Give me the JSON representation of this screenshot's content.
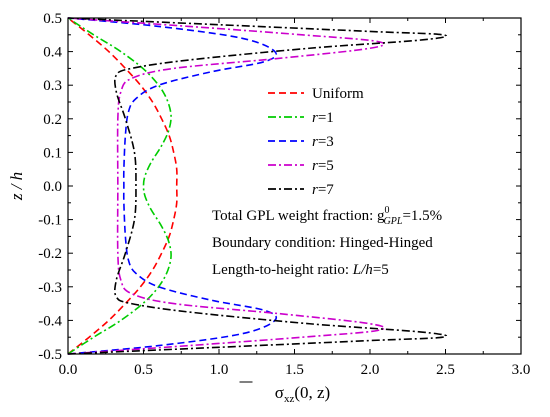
{
  "chart_data": {
    "type": "line",
    "xlabel_prefix": "σ",
    "xlabel_sub": "xz",
    "xlabel_suffix": "(0, z)",
    "ylabel": "z / h",
    "xlim": [
      0.0,
      3.0
    ],
    "ylim": [
      -0.5,
      0.5
    ],
    "xticks": [
      "0.0",
      "0.5",
      "1.0",
      "1.5",
      "2.0",
      "2.5",
      "3.0"
    ],
    "yticks": [
      "-0.5",
      "-0.4",
      "-0.3",
      "-0.2",
      "-0.1",
      "0.0",
      "0.1",
      "0.2",
      "0.3",
      "0.4",
      "0.5"
    ],
    "legend_position": "right",
    "series": [
      {
        "name": "Uniform",
        "color": "#ff0000",
        "dash": "dashed",
        "points": [
          [
            0.0,
            -0.5
          ],
          [
            0.14,
            -0.45
          ],
          [
            0.27,
            -0.4
          ],
          [
            0.38,
            -0.35
          ],
          [
            0.48,
            -0.3
          ],
          [
            0.56,
            -0.25
          ],
          [
            0.62,
            -0.2
          ],
          [
            0.67,
            -0.15
          ],
          [
            0.7,
            -0.1
          ],
          [
            0.72,
            -0.05
          ],
          [
            0.72,
            0.0
          ],
          [
            0.72,
            0.05
          ],
          [
            0.7,
            0.1
          ],
          [
            0.67,
            0.15
          ],
          [
            0.62,
            0.2
          ],
          [
            0.56,
            0.25
          ],
          [
            0.48,
            0.3
          ],
          [
            0.38,
            0.35
          ],
          [
            0.27,
            0.4
          ],
          [
            0.14,
            0.45
          ],
          [
            0.0,
            0.5
          ]
        ]
      },
      {
        "name": "r=1",
        "color": "#00cc00",
        "dash": "dashdot",
        "points": [
          [
            0.0,
            -0.5
          ],
          [
            0.17,
            -0.45
          ],
          [
            0.35,
            -0.4
          ],
          [
            0.52,
            -0.34
          ],
          [
            0.63,
            -0.28
          ],
          [
            0.68,
            -0.22
          ],
          [
            0.67,
            -0.17
          ],
          [
            0.62,
            -0.12
          ],
          [
            0.55,
            -0.07
          ],
          [
            0.51,
            -0.03
          ],
          [
            0.5,
            0.0
          ],
          [
            0.51,
            0.03
          ],
          [
            0.55,
            0.07
          ],
          [
            0.62,
            0.12
          ],
          [
            0.67,
            0.17
          ],
          [
            0.68,
            0.22
          ],
          [
            0.63,
            0.28
          ],
          [
            0.52,
            0.34
          ],
          [
            0.35,
            0.4
          ],
          [
            0.17,
            0.45
          ],
          [
            0.0,
            0.5
          ]
        ]
      },
      {
        "name": "r=3",
        "color": "#0000ff",
        "dash": "dashed",
        "points": [
          [
            0.0,
            -0.5
          ],
          [
            0.6,
            -0.475
          ],
          [
            1.15,
            -0.44
          ],
          [
            1.37,
            -0.4
          ],
          [
            1.3,
            -0.37
          ],
          [
            0.95,
            -0.34
          ],
          [
            0.6,
            -0.3
          ],
          [
            0.45,
            -0.26
          ],
          [
            0.4,
            -0.22
          ],
          [
            0.38,
            -0.15
          ],
          [
            0.37,
            -0.05
          ],
          [
            0.37,
            0.0
          ],
          [
            0.37,
            0.05
          ],
          [
            0.38,
            0.15
          ],
          [
            0.4,
            0.22
          ],
          [
            0.45,
            0.26
          ],
          [
            0.6,
            0.3
          ],
          [
            0.95,
            0.34
          ],
          [
            1.3,
            0.37
          ],
          [
            1.37,
            0.4
          ],
          [
            1.15,
            0.44
          ],
          [
            0.6,
            0.475
          ],
          [
            0.0,
            0.5
          ]
        ]
      },
      {
        "name": "r=5",
        "color": "#cc00cc",
        "dash": "dashdot",
        "points": [
          [
            0.0,
            -0.5
          ],
          [
            0.8,
            -0.475
          ],
          [
            1.55,
            -0.45
          ],
          [
            2.05,
            -0.43
          ],
          [
            2.0,
            -0.41
          ],
          [
            1.4,
            -0.38
          ],
          [
            0.7,
            -0.35
          ],
          [
            0.42,
            -0.32
          ],
          [
            0.35,
            -0.28
          ],
          [
            0.33,
            -0.2
          ],
          [
            0.33,
            0.0
          ],
          [
            0.33,
            0.2
          ],
          [
            0.35,
            0.28
          ],
          [
            0.42,
            0.32
          ],
          [
            0.7,
            0.35
          ],
          [
            1.4,
            0.38
          ],
          [
            2.0,
            0.41
          ],
          [
            2.05,
            0.43
          ],
          [
            1.55,
            0.45
          ],
          [
            0.8,
            0.475
          ],
          [
            0.0,
            0.5
          ]
        ]
      },
      {
        "name": "r=7",
        "color": "#000000",
        "dash": "dashdot",
        "points": [
          [
            0.0,
            -0.5
          ],
          [
            1.0,
            -0.48
          ],
          [
            2.0,
            -0.46
          ],
          [
            2.48,
            -0.45
          ],
          [
            2.35,
            -0.435
          ],
          [
            1.6,
            -0.41
          ],
          [
            0.8,
            -0.375
          ],
          [
            0.42,
            -0.35
          ],
          [
            0.32,
            -0.33
          ],
          [
            0.32,
            -0.28
          ],
          [
            0.38,
            -0.2
          ],
          [
            0.44,
            -0.1
          ],
          [
            0.45,
            0.0
          ],
          [
            0.44,
            0.1
          ],
          [
            0.38,
            0.2
          ],
          [
            0.32,
            0.28
          ],
          [
            0.32,
            0.33
          ],
          [
            0.42,
            0.35
          ],
          [
            0.8,
            0.375
          ],
          [
            1.6,
            0.41
          ],
          [
            2.35,
            0.435
          ],
          [
            2.48,
            0.45
          ],
          [
            2.0,
            0.46
          ],
          [
            1.0,
            0.48
          ],
          [
            0.0,
            0.5
          ]
        ]
      }
    ],
    "annotations": [
      {
        "parts": [
          {
            "t": "Total GPL weight fraction: g"
          },
          {
            "t": "0",
            "style": "sup"
          },
          {
            "t": "GPL",
            "style": "sub-italic"
          },
          {
            "t": "=1.5%"
          }
        ]
      },
      {
        "parts": [
          {
            "t": "Boundary condition: Hinged-Hinged"
          }
        ]
      },
      {
        "parts": [
          {
            "t": "Length-to-height ratio: "
          },
          {
            "t": "L/h",
            "style": "italic"
          },
          {
            "t": "=5"
          }
        ]
      }
    ]
  }
}
